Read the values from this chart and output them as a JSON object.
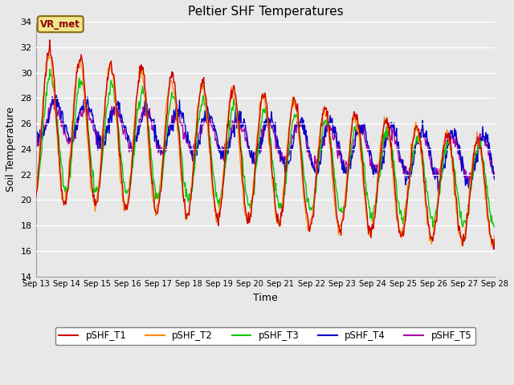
{
  "title": "Peltier SHF Temperatures",
  "xlabel": "Time",
  "ylabel": "Soil Temperature",
  "ylim": [
    14,
    34
  ],
  "yticks": [
    14,
    16,
    18,
    20,
    22,
    24,
    26,
    28,
    30,
    32,
    34
  ],
  "xlim_days": [
    13,
    28
  ],
  "xtick_labels": [
    "Sep 13",
    "Sep 14",
    "Sep 15",
    "Sep 16",
    "Sep 17",
    "Sep 18",
    "Sep 19",
    "Sep 20",
    "Sep 21",
    "Sep 22",
    "Sep 23",
    "Sep 24",
    "Sep 25",
    "Sep 26",
    "Sep 27",
    "Sep 28"
  ],
  "series_colors": {
    "pSHF_T1": "#cc0000",
    "pSHF_T2": "#ff8800",
    "pSHF_T3": "#00cc00",
    "pSHF_T4": "#0000cc",
    "pSHF_T5": "#aa00aa"
  },
  "series_names": [
    "pSHF_T1",
    "pSHF_T2",
    "pSHF_T3",
    "pSHF_T4",
    "pSHF_T5"
  ],
  "annotation_text": "VR_met",
  "annotation_facecolor": "#f0e68c",
  "annotation_edgecolor": "#8b6914",
  "annotation_textcolor": "#8b0000",
  "plot_bg_color": "#e8e8e8",
  "grid_color": "#ffffff",
  "line_width": 1.0
}
